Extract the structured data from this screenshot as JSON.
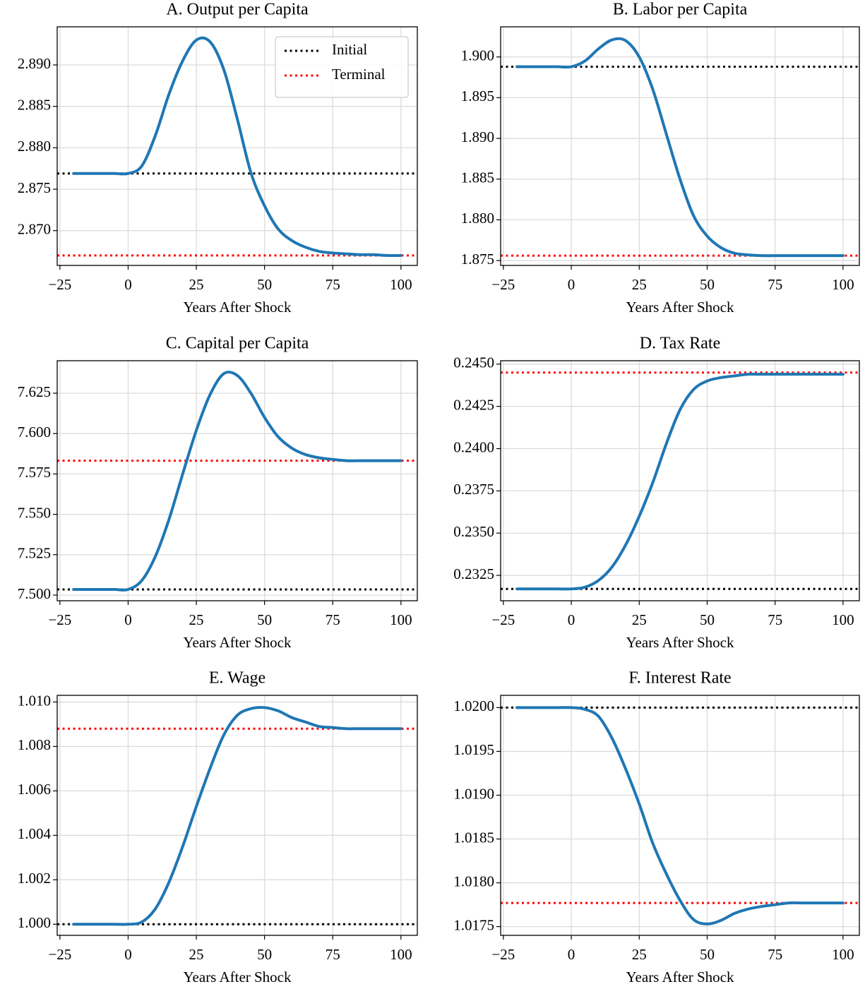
{
  "chart_data": [
    {
      "type": "line",
      "title": "A. Output per Capita",
      "xlabel": "Years After Shock",
      "x": [
        -20,
        -15,
        -10,
        -5,
        0,
        5,
        10,
        15,
        20,
        25,
        30,
        35,
        40,
        45,
        50,
        55,
        60,
        65,
        70,
        75,
        80,
        85,
        90,
        95,
        100
      ],
      "xlim": [
        -26,
        106
      ],
      "xticks": [
        {
          "value": -25,
          "label": "−25"
        },
        0,
        25,
        50,
        75,
        100
      ],
      "ylim": [
        2.8658,
        2.8946
      ],
      "yticks": [
        {
          "value": 2.87,
          "label": "2.870"
        },
        {
          "value": 2.875,
          "label": "2.875"
        },
        {
          "value": 2.88,
          "label": "2.880"
        },
        {
          "value": 2.885,
          "label": "2.885"
        },
        {
          "value": 2.89,
          "label": "2.890"
        }
      ],
      "grid": true,
      "legend": "upper right",
      "series": [
        {
          "color": "#1f77b4",
          "values": [
            2.8769,
            2.8769,
            2.8769,
            2.8769,
            2.8769,
            2.8778,
            2.8815,
            2.8865,
            2.8905,
            2.893,
            2.8928,
            2.8895,
            2.8835,
            2.877,
            2.873,
            2.8702,
            2.8688,
            2.868,
            2.8675,
            2.8673,
            2.8672,
            2.8671,
            2.8671,
            2.867,
            2.867
          ]
        }
      ],
      "hlines": [
        {
          "name": "Initial",
          "value": 2.8769,
          "color": "#000000"
        },
        {
          "name": "Terminal",
          "value": 2.867,
          "color": "#ff0000"
        }
      ]
    },
    {
      "type": "line",
      "title": "B. Labor per Capita",
      "xlabel": "Years After Shock",
      "x": [
        -20,
        -15,
        -10,
        -5,
        0,
        5,
        10,
        15,
        20,
        25,
        30,
        35,
        40,
        45,
        50,
        55,
        60,
        65,
        70,
        75,
        80,
        85,
        90,
        95,
        100
      ],
      "xlim": [
        -26,
        106
      ],
      "xticks": [
        {
          "value": -25,
          "label": "−25"
        },
        0,
        25,
        50,
        75,
        100
      ],
      "ylim": [
        1.8744,
        1.9037
      ],
      "yticks": [
        {
          "value": 1.875,
          "label": "1.875"
        },
        {
          "value": 1.88,
          "label": "1.880"
        },
        {
          "value": 1.885,
          "label": "1.885"
        },
        {
          "value": 1.89,
          "label": "1.890"
        },
        {
          "value": 1.895,
          "label": "1.895"
        },
        {
          "value": 1.9,
          "label": "1.900"
        }
      ],
      "grid": true,
      "series": [
        {
          "color": "#1f77b4",
          "values": [
            1.8988,
            1.8988,
            1.8988,
            1.8988,
            1.8988,
            1.8995,
            1.901,
            1.9021,
            1.902,
            1.9,
            1.896,
            1.8905,
            1.885,
            1.8805,
            1.878,
            1.8766,
            1.8759,
            1.8757,
            1.8756,
            1.8756,
            1.8756,
            1.8756,
            1.8756,
            1.8756,
            1.8756
          ]
        }
      ],
      "hlines": [
        {
          "value": 1.8988,
          "color": "#000000"
        },
        {
          "value": 1.8756,
          "color": "#ff0000"
        }
      ]
    },
    {
      "type": "line",
      "title": "C. Capital per Capita",
      "xlabel": "Years After Shock",
      "x": [
        -20,
        -15,
        -10,
        -5,
        0,
        5,
        10,
        15,
        20,
        25,
        30,
        35,
        40,
        45,
        50,
        55,
        60,
        65,
        70,
        75,
        80,
        85,
        90,
        95,
        100
      ],
      "xlim": [
        -26,
        106
      ],
      "xticks": [
        {
          "value": -25,
          "label": "−25"
        },
        0,
        25,
        50,
        75,
        100
      ],
      "ylim": [
        7.4965,
        7.6451
      ],
      "yticks": [
        {
          "value": 7.5,
          "label": "7.500"
        },
        {
          "value": 7.525,
          "label": "7.525"
        },
        {
          "value": 7.55,
          "label": "7.550"
        },
        {
          "value": 7.575,
          "label": "7.575"
        },
        {
          "value": 7.6,
          "label": "7.600"
        },
        {
          "value": 7.625,
          "label": "7.625"
        }
      ],
      "grid": true,
      "series": [
        {
          "color": "#1f77b4",
          "values": [
            7.5035,
            7.5035,
            7.5035,
            7.5035,
            7.5035,
            7.509,
            7.524,
            7.547,
            7.575,
            7.602,
            7.624,
            7.637,
            7.636,
            7.625,
            7.61,
            7.598,
            7.591,
            7.587,
            7.585,
            7.584,
            7.5832,
            7.5832,
            7.5832,
            7.5832,
            7.5832
          ]
        }
      ],
      "hlines": [
        {
          "value": 7.5035,
          "color": "#000000"
        },
        {
          "value": 7.5832,
          "color": "#ff0000"
        }
      ]
    },
    {
      "type": "line",
      "title": "D. Tax Rate",
      "xlabel": "Years After Shock",
      "x": [
        -20,
        -15,
        -10,
        -5,
        0,
        5,
        10,
        15,
        20,
        25,
        30,
        35,
        40,
        45,
        50,
        55,
        60,
        65,
        70,
        75,
        80,
        85,
        90,
        95,
        100
      ],
      "xlim": [
        -26,
        106
      ],
      "xticks": [
        {
          "value": -25,
          "label": "−25"
        },
        0,
        25,
        50,
        75,
        100
      ],
      "ylim": [
        0.231,
        0.2452
      ],
      "yticks": [
        {
          "value": 0.2325,
          "label": "0.2325"
        },
        {
          "value": 0.235,
          "label": "0.2350"
        },
        {
          "value": 0.2375,
          "label": "0.2375"
        },
        {
          "value": 0.24,
          "label": "0.2400"
        },
        {
          "value": 0.2425,
          "label": "0.2425"
        },
        {
          "value": 0.245,
          "label": "0.2450"
        }
      ],
      "grid": true,
      "series": [
        {
          "color": "#1f77b4",
          "values": [
            0.2317,
            0.2317,
            0.2317,
            0.2317,
            0.2317,
            0.2318,
            0.2322,
            0.233,
            0.2343,
            0.236,
            0.238,
            0.2403,
            0.2423,
            0.2435,
            0.244,
            0.2442,
            0.2443,
            0.2444,
            0.2444,
            0.2444,
            0.2444,
            0.2444,
            0.2444,
            0.2444,
            0.2444
          ]
        }
      ],
      "hlines": [
        {
          "value": 0.2317,
          "color": "#000000"
        },
        {
          "value": 0.2445,
          "color": "#ff0000"
        }
      ]
    },
    {
      "type": "line",
      "title": "E. Wage",
      "xlabel": "Years After Shock",
      "x": [
        -20,
        -15,
        -10,
        -5,
        0,
        5,
        10,
        15,
        20,
        25,
        30,
        35,
        40,
        45,
        50,
        55,
        60,
        65,
        70,
        75,
        80,
        85,
        90,
        95,
        100
      ],
      "xlim": [
        -26,
        106
      ],
      "xticks": [
        {
          "value": -25,
          "label": "−25"
        },
        0,
        25,
        50,
        75,
        100
      ],
      "ylim": [
        0.9995,
        1.0103
      ],
      "yticks": [
        {
          "value": 1,
          "label": "1.000"
        },
        {
          "value": 1.002,
          "label": "1.002"
        },
        {
          "value": 1.004,
          "label": "1.004"
        },
        {
          "value": 1.006,
          "label": "1.006"
        },
        {
          "value": 1.008,
          "label": "1.008"
        },
        {
          "value": 1.01,
          "label": "1.010"
        }
      ],
      "grid": true,
      "series": [
        {
          "color": "#1f77b4",
          "values": [
            1.0,
            1.0,
            1.0,
            1.0,
            1.0,
            1.0001,
            1.0007,
            1.0019,
            1.0035,
            1.0053,
            1.007,
            1.0085,
            1.0094,
            1.0097,
            1.00975,
            1.0096,
            1.0093,
            1.0091,
            1.0089,
            1.00885,
            1.0088,
            1.0088,
            1.0088,
            1.0088,
            1.0088
          ]
        }
      ],
      "hlines": [
        {
          "value": 1.0,
          "color": "#000000"
        },
        {
          "value": 1.0088,
          "color": "#ff0000"
        }
      ]
    },
    {
      "type": "line",
      "title": "F. Interest Rate",
      "xlabel": "Years After Shock",
      "x": [
        -20,
        -15,
        -10,
        -5,
        0,
        5,
        10,
        15,
        20,
        25,
        30,
        35,
        40,
        45,
        50,
        55,
        60,
        65,
        70,
        75,
        80,
        85,
        90,
        95,
        100
      ],
      "xlim": [
        -26,
        106
      ],
      "xticks": [
        {
          "value": -25,
          "label": "−25"
        },
        0,
        25,
        50,
        75,
        100
      ],
      "ylim": [
        1.0174,
        1.02014
      ],
      "yticks": [
        {
          "value": 1.0175,
          "label": "1.0175"
        },
        {
          "value": 1.018,
          "label": "1.0180"
        },
        {
          "value": 1.0185,
          "label": "1.0185"
        },
        {
          "value": 1.019,
          "label": "1.0190"
        },
        {
          "value": 1.0195,
          "label": "1.0195"
        },
        {
          "value": 1.02,
          "label": "1.0200"
        }
      ],
      "grid": true,
      "series": [
        {
          "color": "#1f77b4",
          "values": [
            1.02,
            1.02,
            1.02,
            1.02,
            1.02,
            1.01998,
            1.0199,
            1.01965,
            1.0193,
            1.0189,
            1.01845,
            1.0181,
            1.0178,
            1.01758,
            1.01753,
            1.01757,
            1.01765,
            1.0177,
            1.01773,
            1.01775,
            1.01777,
            1.01777,
            1.01777,
            1.01777,
            1.01777
          ]
        }
      ],
      "hlines": [
        {
          "value": 1.02,
          "color": "#000000"
        },
        {
          "value": 1.01777,
          "color": "#ff0000"
        }
      ]
    }
  ]
}
